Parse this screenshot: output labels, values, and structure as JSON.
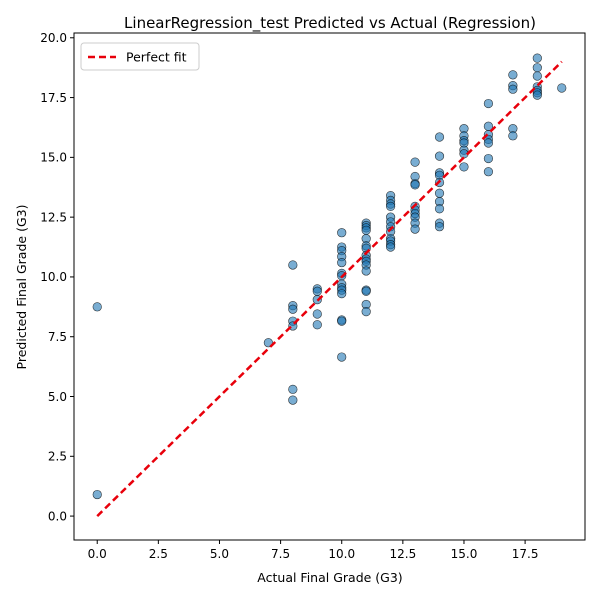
{
  "chart_data": {
    "type": "scatter",
    "title": "LinearRegression_test Predicted vs Actual (Regression)",
    "xlabel": "Actual Final Grade (G3)",
    "ylabel": "Predicted Final Grade (G3)",
    "xlim": [
      -0.95,
      19.95
    ],
    "ylim": [
      -1.0,
      20.2
    ],
    "xticks": [
      "0.0",
      "2.5",
      "5.0",
      "7.5",
      "10.0",
      "12.5",
      "15.0",
      "17.5"
    ],
    "xtick_values": [
      0,
      2.5,
      5,
      7.5,
      10,
      12.5,
      15,
      17.5
    ],
    "yticks": [
      "0.0",
      "2.5",
      "5.0",
      "7.5",
      "10.0",
      "12.5",
      "15.0",
      "17.5",
      "20.0"
    ],
    "ytick_values": [
      0,
      2.5,
      5,
      7.5,
      10,
      12.5,
      15,
      17.5,
      20
    ],
    "grid": false,
    "legend_position": "top-left",
    "colors": {
      "points": "#1f77b4",
      "point_edge": "#000000",
      "fit_line": "#e8000b"
    },
    "series": [
      {
        "kind": "scatter",
        "points": [
          [
            0,
            8.75
          ],
          [
            0,
            0.9
          ],
          [
            7,
            7.25
          ],
          [
            8,
            10.5
          ],
          [
            8,
            8.8
          ],
          [
            8,
            8.65
          ],
          [
            8,
            8.15
          ],
          [
            8,
            7.95
          ],
          [
            8,
            5.3
          ],
          [
            8,
            4.85
          ],
          [
            9,
            9.5
          ],
          [
            9,
            9.4
          ],
          [
            9,
            9.05
          ],
          [
            9,
            8.45
          ],
          [
            9,
            8.0
          ],
          [
            10,
            11.85
          ],
          [
            10,
            11.25
          ],
          [
            10,
            11.1
          ],
          [
            10,
            10.85
          ],
          [
            10,
            10.6
          ],
          [
            10,
            10.15
          ],
          [
            10,
            10.05
          ],
          [
            10,
            9.7
          ],
          [
            10,
            9.55
          ],
          [
            10,
            9.45
          ],
          [
            10,
            9.3
          ],
          [
            10,
            8.2
          ],
          [
            10,
            8.15
          ],
          [
            10,
            6.65
          ],
          [
            11,
            12.25
          ],
          [
            11,
            12.15
          ],
          [
            11,
            12.05
          ],
          [
            11,
            11.95
          ],
          [
            11,
            11.6
          ],
          [
            11,
            11.3
          ],
          [
            11,
            11.2
          ],
          [
            11,
            10.9
          ],
          [
            11,
            10.75
          ],
          [
            11,
            10.65
          ],
          [
            11,
            10.5
          ],
          [
            11,
            10.25
          ],
          [
            11,
            9.45
          ],
          [
            11,
            9.4
          ],
          [
            11,
            8.85
          ],
          [
            11,
            8.55
          ],
          [
            12,
            13.4
          ],
          [
            12,
            13.2
          ],
          [
            12,
            13.05
          ],
          [
            12,
            12.95
          ],
          [
            12,
            12.5
          ],
          [
            12,
            12.3
          ],
          [
            12,
            12.1
          ],
          [
            12,
            11.9
          ],
          [
            12,
            11.6
          ],
          [
            12,
            11.5
          ],
          [
            12,
            11.35
          ],
          [
            12,
            11.25
          ],
          [
            13,
            14.8
          ],
          [
            13,
            14.2
          ],
          [
            13,
            13.9
          ],
          [
            13,
            13.85
          ],
          [
            13,
            12.95
          ],
          [
            13,
            12.8
          ],
          [
            13,
            12.65
          ],
          [
            13,
            12.5
          ],
          [
            13,
            12.25
          ],
          [
            13,
            12.0
          ],
          [
            14,
            15.85
          ],
          [
            14,
            15.05
          ],
          [
            14,
            14.35
          ],
          [
            14,
            14.25
          ],
          [
            14,
            13.95
          ],
          [
            14,
            13.5
          ],
          [
            14,
            13.15
          ],
          [
            14,
            12.85
          ],
          [
            14,
            12.25
          ],
          [
            14,
            12.1
          ],
          [
            15,
            16.2
          ],
          [
            15,
            15.9
          ],
          [
            15,
            15.7
          ],
          [
            15,
            15.6
          ],
          [
            15,
            15.3
          ],
          [
            15,
            15.15
          ],
          [
            15,
            14.6
          ],
          [
            16,
            17.25
          ],
          [
            16,
            16.3
          ],
          [
            16,
            15.95
          ],
          [
            16,
            15.75
          ],
          [
            16,
            15.6
          ],
          [
            16,
            14.95
          ],
          [
            16,
            14.4
          ],
          [
            17,
            18.45
          ],
          [
            17,
            18.0
          ],
          [
            17,
            17.85
          ],
          [
            17,
            16.2
          ],
          [
            17,
            15.9
          ],
          [
            18,
            19.15
          ],
          [
            18,
            18.75
          ],
          [
            18,
            18.4
          ],
          [
            18,
            17.95
          ],
          [
            18,
            17.8
          ],
          [
            18,
            17.7
          ],
          [
            18,
            17.6
          ],
          [
            19,
            17.9
          ]
        ]
      },
      {
        "kind": "line",
        "name": "Perfect fit",
        "style": "dashed",
        "points": [
          [
            0,
            0
          ],
          [
            19,
            19
          ]
        ]
      }
    ]
  }
}
